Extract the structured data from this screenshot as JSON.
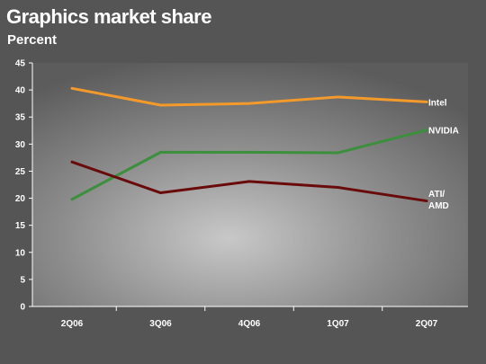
{
  "title": "Graphics market share",
  "subtitle": "Percent",
  "chart_data": {
    "type": "line",
    "title": "Graphics market share",
    "subtitle": "Percent",
    "categories": [
      "2Q06",
      "3Q06",
      "4Q06",
      "1Q07",
      "2Q07"
    ],
    "ylim": [
      0,
      45
    ],
    "yticks": [
      0,
      5,
      10,
      15,
      20,
      25,
      30,
      35,
      40,
      45
    ],
    "grid": false,
    "legend": "inline labels at right end of lines",
    "series": [
      {
        "name": "Intel",
        "label_lines": [
          "Intel"
        ],
        "color": "#f39a2a",
        "values": [
          40.3,
          37.2,
          37.5,
          38.7,
          37.8
        ]
      },
      {
        "name": "NVIDIA",
        "label_lines": [
          "NVIDIA"
        ],
        "color": "#3c8f3c",
        "values": [
          19.8,
          28.5,
          28.5,
          28.4,
          32.6
        ]
      },
      {
        "name": "ATI/AMD",
        "label_lines": [
          "ATI/",
          "AMD"
        ],
        "color": "#6a0b0b",
        "values": [
          26.7,
          21.0,
          23.1,
          22.0,
          19.5
        ]
      }
    ]
  }
}
